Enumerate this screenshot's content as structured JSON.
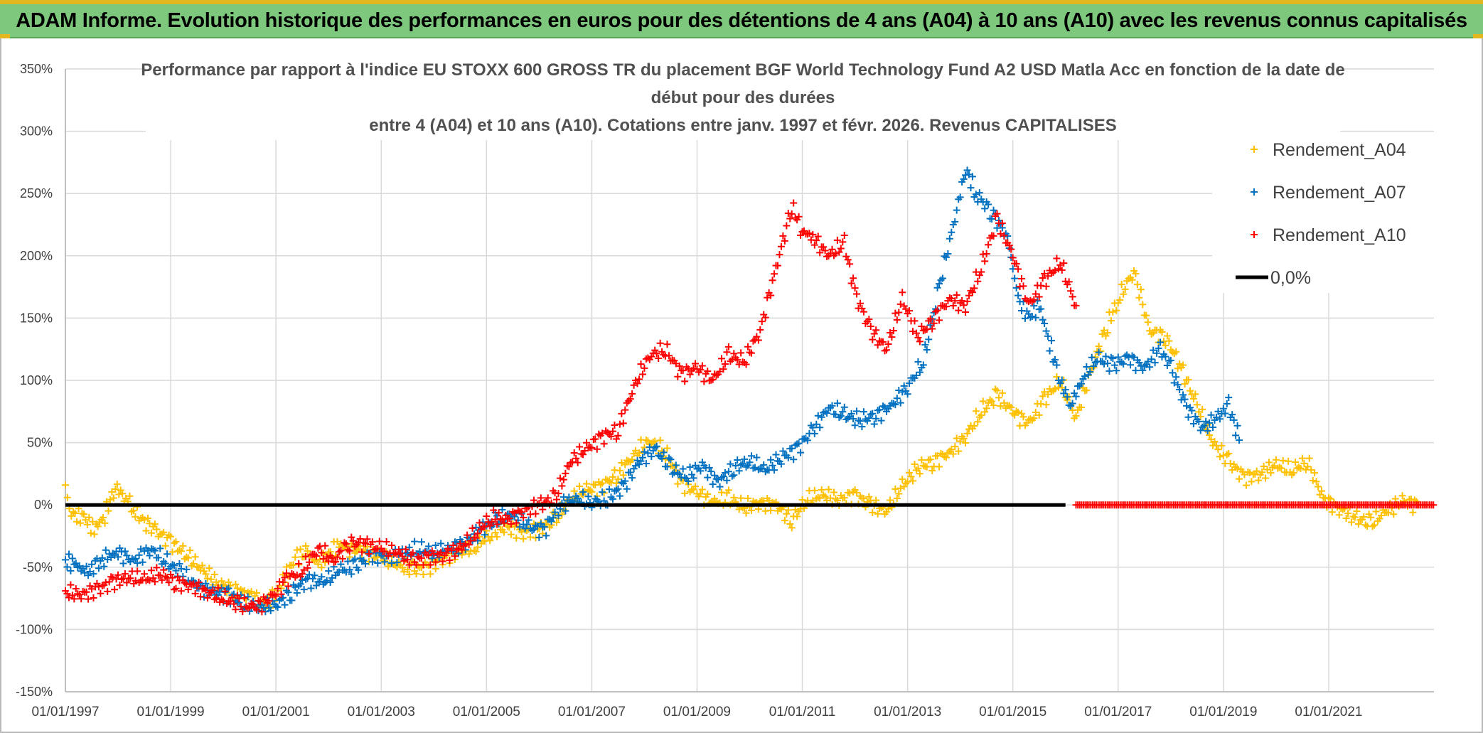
{
  "banner": {
    "text": "ADAM Informe. Evolution historique des performances en euros pour des détentions de 4 ans (A04) à 10 ans (A10) avec les revenus connus capitalisés"
  },
  "chart_data": {
    "type": "scatter",
    "title_lines": [
      "Performance par rapport à l'indice EU STOXX 600 GROSS TR  du placement BGF World Technology Fund A2 USD Matla Acc en fonction de la date de",
      "début pour des durées",
      "entre 4 (A04) et 10 ans (A10). Cotations entre janv. 1997 et févr. 2026. Revenus CAPITALISES"
    ],
    "x_range": [
      1997.0,
      2023.0
    ],
    "x_ticks": [
      1997,
      1999,
      2001,
      2003,
      2005,
      2007,
      2009,
      2011,
      2013,
      2015,
      2017,
      2019,
      2021
    ],
    "x_tick_labels": [
      "01/01/1997",
      "01/01/1999",
      "01/01/2001",
      "01/01/2003",
      "01/01/2005",
      "01/01/2007",
      "01/01/2009",
      "01/01/2011",
      "01/01/2013",
      "01/01/2015",
      "01/01/2017",
      "01/01/2019",
      "01/01/2021"
    ],
    "y_range": [
      -150,
      350
    ],
    "y_ticks": [
      -150,
      -100,
      -50,
      0,
      50,
      100,
      150,
      200,
      250,
      300,
      350
    ],
    "y_tick_labels": [
      "-150%",
      "-100%",
      "-50%",
      "0%",
      "50%",
      "100%",
      "150%",
      "200%",
      "250%",
      "300%",
      "350%"
    ],
    "grid": true,
    "legend_position": "top-right",
    "series": [
      {
        "name": "Rendement_A04",
        "color": "#FFC000",
        "marker": "+",
        "points": [
          [
            1997.0,
            15
          ],
          [
            1997.15,
            -8
          ],
          [
            1997.35,
            -10
          ],
          [
            1997.55,
            -20
          ],
          [
            1997.75,
            -8
          ],
          [
            1997.95,
            15
          ],
          [
            1998.15,
            5
          ],
          [
            1998.4,
            -10
          ],
          [
            1998.7,
            -20
          ],
          [
            1999.0,
            -30
          ],
          [
            1999.3,
            -40
          ],
          [
            1999.6,
            -52
          ],
          [
            1999.9,
            -63
          ],
          [
            2000.2,
            -68
          ],
          [
            2000.5,
            -72
          ],
          [
            2000.8,
            -80
          ],
          [
            2001.0,
            -72
          ],
          [
            2001.2,
            -55
          ],
          [
            2001.4,
            -42
          ],
          [
            2001.6,
            -38
          ],
          [
            2001.8,
            -48
          ],
          [
            2002.0,
            -40
          ],
          [
            2002.2,
            -32
          ],
          [
            2002.4,
            -35
          ],
          [
            2002.7,
            -38
          ],
          [
            2003.0,
            -42
          ],
          [
            2003.3,
            -48
          ],
          [
            2003.6,
            -52
          ],
          [
            2003.9,
            -50
          ],
          [
            2004.2,
            -42
          ],
          [
            2004.5,
            -38
          ],
          [
            2004.8,
            -33
          ],
          [
            2005.1,
            -22
          ],
          [
            2005.4,
            -18
          ],
          [
            2005.7,
            -22
          ],
          [
            2006.0,
            -20
          ],
          [
            2006.3,
            -12
          ],
          [
            2006.6,
            5
          ],
          [
            2006.9,
            12
          ],
          [
            2007.2,
            15
          ],
          [
            2007.5,
            25
          ],
          [
            2007.8,
            40
          ],
          [
            2008.1,
            52
          ],
          [
            2008.4,
            42
          ],
          [
            2008.7,
            18
          ],
          [
            2009.0,
            10
          ],
          [
            2009.3,
            2
          ],
          [
            2009.6,
            5
          ],
          [
            2009.9,
            -2
          ],
          [
            2010.2,
            2
          ],
          [
            2010.5,
            0
          ],
          [
            2010.8,
            -12
          ],
          [
            2011.1,
            5
          ],
          [
            2011.4,
            8
          ],
          [
            2011.7,
            4
          ],
          [
            2012.0,
            8
          ],
          [
            2012.3,
            0
          ],
          [
            2012.6,
            -5
          ],
          [
            2012.9,
            15
          ],
          [
            2013.2,
            30
          ],
          [
            2013.5,
            35
          ],
          [
            2013.8,
            42
          ],
          [
            2014.1,
            55
          ],
          [
            2014.4,
            75
          ],
          [
            2014.7,
            88
          ],
          [
            2015.0,
            75
          ],
          [
            2015.3,
            65
          ],
          [
            2015.6,
            85
          ],
          [
            2015.9,
            100
          ],
          [
            2016.2,
            70
          ],
          [
            2016.5,
            110
          ],
          [
            2016.8,
            145
          ],
          [
            2017.0,
            165
          ],
          [
            2017.3,
            188
          ],
          [
            2017.6,
            140
          ],
          [
            2017.9,
            135
          ],
          [
            2018.2,
            110
          ],
          [
            2018.5,
            80
          ],
          [
            2018.8,
            50
          ],
          [
            2019.1,
            35
          ],
          [
            2019.4,
            22
          ],
          [
            2019.7,
            25
          ],
          [
            2020.0,
            32
          ],
          [
            2020.3,
            28
          ],
          [
            2020.6,
            35
          ],
          [
            2020.9,
            5
          ],
          [
            2021.2,
            -3
          ],
          [
            2021.5,
            -10
          ],
          [
            2021.8,
            -15
          ],
          [
            2022.1,
            -5
          ],
          [
            2022.4,
            3
          ],
          [
            2022.7,
            0
          ]
        ]
      },
      {
        "name": "Rendement_A07",
        "color": "#0070C0",
        "marker": "+",
        "points": [
          [
            1997.0,
            -45
          ],
          [
            1997.2,
            -48
          ],
          [
            1997.4,
            -55
          ],
          [
            1997.6,
            -48
          ],
          [
            1997.8,
            -42
          ],
          [
            1998.0,
            -38
          ],
          [
            1998.3,
            -45
          ],
          [
            1998.6,
            -35
          ],
          [
            1998.9,
            -45
          ],
          [
            1999.2,
            -55
          ],
          [
            1999.5,
            -65
          ],
          [
            1999.8,
            -70
          ],
          [
            2000.1,
            -72
          ],
          [
            2000.4,
            -80
          ],
          [
            2000.7,
            -82
          ],
          [
            2001.0,
            -80
          ],
          [
            2001.3,
            -70
          ],
          [
            2001.6,
            -60
          ],
          [
            2001.9,
            -62
          ],
          [
            2002.2,
            -52
          ],
          [
            2002.5,
            -50
          ],
          [
            2002.8,
            -40
          ],
          [
            2003.1,
            -42
          ],
          [
            2003.4,
            -40
          ],
          [
            2003.7,
            -35
          ],
          [
            2004.0,
            -38
          ],
          [
            2004.3,
            -35
          ],
          [
            2004.6,
            -30
          ],
          [
            2004.9,
            -20
          ],
          [
            2005.2,
            -12
          ],
          [
            2005.5,
            -8
          ],
          [
            2005.8,
            -18
          ],
          [
            2006.1,
            -20
          ],
          [
            2006.4,
            0
          ],
          [
            2006.7,
            5
          ],
          [
            2007.0,
            2
          ],
          [
            2007.3,
            5
          ],
          [
            2007.6,
            15
          ],
          [
            2007.9,
            35
          ],
          [
            2008.2,
            45
          ],
          [
            2008.5,
            30
          ],
          [
            2008.8,
            22
          ],
          [
            2009.1,
            32
          ],
          [
            2009.4,
            18
          ],
          [
            2009.7,
            30
          ],
          [
            2010.0,
            35
          ],
          [
            2010.3,
            28
          ],
          [
            2010.6,
            38
          ],
          [
            2010.9,
            45
          ],
          [
            2011.2,
            60
          ],
          [
            2011.5,
            78
          ],
          [
            2011.8,
            72
          ],
          [
            2012.1,
            68
          ],
          [
            2012.4,
            72
          ],
          [
            2012.7,
            80
          ],
          [
            2013.0,
            95
          ],
          [
            2013.3,
            115
          ],
          [
            2013.6,
            175
          ],
          [
            2013.9,
            230
          ],
          [
            2014.1,
            270
          ],
          [
            2014.3,
            250
          ],
          [
            2014.6,
            235
          ],
          [
            2014.9,
            215
          ],
          [
            2015.1,
            165
          ],
          [
            2015.3,
            150
          ],
          [
            2015.5,
            160
          ],
          [
            2015.7,
            130
          ],
          [
            2015.9,
            100
          ],
          [
            2016.1,
            80
          ],
          [
            2016.3,
            100
          ],
          [
            2016.6,
            118
          ],
          [
            2016.9,
            112
          ],
          [
            2017.2,
            118
          ],
          [
            2017.5,
            110
          ],
          [
            2017.8,
            125
          ],
          [
            2018.0,
            110
          ],
          [
            2018.3,
            78
          ],
          [
            2018.6,
            62
          ],
          [
            2018.9,
            70
          ],
          [
            2019.1,
            80
          ],
          [
            2019.3,
            52
          ]
        ]
      },
      {
        "name": "Rendement_A10",
        "color": "#FF0000",
        "marker": "+",
        "points": [
          [
            1997.0,
            -70
          ],
          [
            1997.3,
            -72
          ],
          [
            1997.6,
            -68
          ],
          [
            1997.9,
            -62
          ],
          [
            1998.2,
            -58
          ],
          [
            1998.5,
            -60
          ],
          [
            1998.8,
            -55
          ],
          [
            1999.1,
            -62
          ],
          [
            1999.4,
            -65
          ],
          [
            1999.7,
            -70
          ],
          [
            2000.0,
            -75
          ],
          [
            2000.3,
            -80
          ],
          [
            2000.6,
            -82
          ],
          [
            2000.9,
            -75
          ],
          [
            2001.2,
            -60
          ],
          [
            2001.5,
            -52
          ],
          [
            2001.8,
            -35
          ],
          [
            2002.1,
            -45
          ],
          [
            2002.4,
            -30
          ],
          [
            2002.7,
            -32
          ],
          [
            2003.0,
            -35
          ],
          [
            2003.3,
            -38
          ],
          [
            2003.6,
            -45
          ],
          [
            2003.9,
            -42
          ],
          [
            2004.2,
            -40
          ],
          [
            2004.5,
            -35
          ],
          [
            2004.8,
            -22
          ],
          [
            2005.1,
            -10
          ],
          [
            2005.4,
            -12
          ],
          [
            2005.7,
            -5
          ],
          [
            2006.0,
            0
          ],
          [
            2006.3,
            5
          ],
          [
            2006.6,
            35
          ],
          [
            2006.9,
            45
          ],
          [
            2007.2,
            55
          ],
          [
            2007.5,
            60
          ],
          [
            2007.8,
            95
          ],
          [
            2008.1,
            120
          ],
          [
            2008.4,
            125
          ],
          [
            2008.7,
            105
          ],
          [
            2009.0,
            110
          ],
          [
            2009.3,
            100
          ],
          [
            2009.6,
            120
          ],
          [
            2009.9,
            115
          ],
          [
            2010.2,
            140
          ],
          [
            2010.5,
            190
          ],
          [
            2010.8,
            240
          ],
          [
            2011.0,
            220
          ],
          [
            2011.2,
            215
          ],
          [
            2011.5,
            200
          ],
          [
            2011.8,
            210
          ],
          [
            2012.0,
            170
          ],
          [
            2012.3,
            140
          ],
          [
            2012.6,
            125
          ],
          [
            2012.9,
            165
          ],
          [
            2013.2,
            135
          ],
          [
            2013.5,
            150
          ],
          [
            2013.8,
            165
          ],
          [
            2014.1,
            160
          ],
          [
            2014.4,
            190
          ],
          [
            2014.7,
            230
          ],
          [
            2015.0,
            200
          ],
          [
            2015.3,
            160
          ],
          [
            2015.6,
            180
          ],
          [
            2015.9,
            195
          ],
          [
            2016.2,
            160
          ]
        ]
      },
      {
        "name": "0,0%",
        "color": "#000000",
        "marker": "line",
        "points": [
          [
            1997.0,
            0
          ],
          [
            2016.0,
            0
          ]
        ]
      }
    ],
    "extra_flat_segment": {
      "color": "#FF0000",
      "x_from": 2016.2,
      "x_to": 2023.0,
      "y": 0
    }
  }
}
